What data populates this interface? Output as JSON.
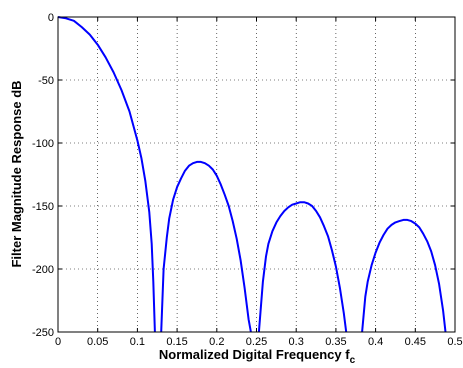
{
  "chart_data": {
    "type": "line",
    "title": "",
    "xlabel": "Normalized Digital Frequency f",
    "xlabel_subscript": "c",
    "ylabel": "Filter Magnitude Response dB",
    "xlim": [
      0,
      0.5
    ],
    "ylim": [
      -250,
      0
    ],
    "x_ticks": [
      0,
      0.05,
      0.1,
      0.15,
      0.2,
      0.25,
      0.3,
      0.35,
      0.4,
      0.45,
      0.5
    ],
    "x_tick_labels": [
      "0",
      "0.05",
      "0.1",
      "0.15",
      "0.2",
      "0.25",
      "0.3",
      "0.35",
      "0.4",
      "0.45",
      "0.5"
    ],
    "y_ticks": [
      0,
      -50,
      -100,
      -150,
      -200,
      -250
    ],
    "y_tick_labels": [
      "0",
      "-50",
      "-100",
      "-150",
      "-200",
      "-250"
    ],
    "grid": true,
    "grid_style": "dotted",
    "line_color": "#0000ff",
    "series": [
      {
        "segments": [
          {
            "x": [
              0,
              0.01,
              0.02,
              0.03,
              0.04,
              0.05,
              0.06,
              0.07,
              0.08,
              0.09,
              0.1,
              0.105,
              0.11,
              0.115,
              0.118,
              0.12,
              0.122
            ],
            "y": [
              0,
              -1,
              -3,
              -8,
              -14,
              -22,
              -32,
              -44,
              -58,
              -75,
              -98,
              -112,
              -130,
              -155,
              -180,
              -210,
              -250
            ]
          },
          {
            "x": [
              0.13,
              0.133,
              0.137,
              0.14,
              0.145,
              0.15,
              0.155,
              0.16,
              0.165,
              0.17,
              0.175,
              0.18,
              0.185,
              0.19,
              0.195,
              0.2,
              0.205,
              0.21,
              0.215,
              0.22,
              0.225,
              0.23,
              0.235,
              0.24,
              0.243
            ],
            "y": [
              -250,
              -200,
              -175,
              -160,
              -145,
              -135,
              -128,
              -122,
              -118,
              -116,
              -115,
              -115,
              -116,
              -118,
              -121,
              -126,
              -133,
              -141,
              -150,
              -162,
              -176,
              -193,
              -215,
              -240,
              -250
            ]
          },
          {
            "x": [
              0.253,
              0.258,
              0.262,
              0.265,
              0.27,
              0.275,
              0.28,
              0.285,
              0.29,
              0.295,
              0.3,
              0.305,
              0.31,
              0.315,
              0.32,
              0.325,
              0.33,
              0.335,
              0.34,
              0.345,
              0.35,
              0.355,
              0.36,
              0.363
            ],
            "y": [
              -250,
              -210,
              -190,
              -180,
              -170,
              -163,
              -158,
              -154,
              -151,
              -149,
              -148,
              -147,
              -147,
              -148,
              -150,
              -154,
              -159,
              -166,
              -174,
              -185,
              -198,
              -215,
              -235,
              -250
            ]
          },
          {
            "x": [
              0.383,
              0.387,
              0.39,
              0.395,
              0.4,
              0.405,
              0.41,
              0.415,
              0.42,
              0.425,
              0.43,
              0.435,
              0.44,
              0.445,
              0.45,
              0.455,
              0.46,
              0.465,
              0.47,
              0.475,
              0.48,
              0.485,
              0.488
            ],
            "y": [
              -250,
              -222,
              -210,
              -197,
              -187,
              -179,
              -173,
              -168,
              -165,
              -163,
              -162,
              -161,
              -161,
              -162,
              -164,
              -167,
              -172,
              -178,
              -186,
              -197,
              -212,
              -233,
              -250
            ]
          }
        ]
      }
    ]
  }
}
